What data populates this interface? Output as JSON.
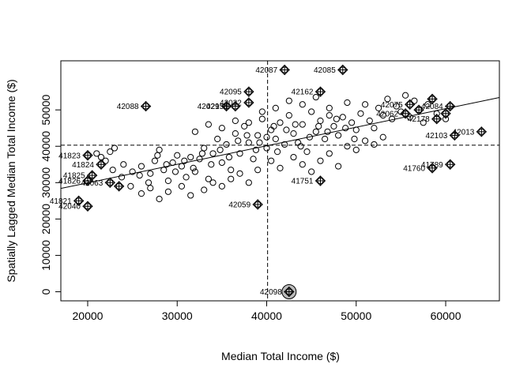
{
  "chart_data": {
    "type": "scatter",
    "title": "",
    "xlabel": "Median Total Income ($)",
    "ylabel": "Spatially Lagged Median Total Income ($)",
    "xlim": [
      17000,
      66000
    ],
    "ylim": [
      -2500,
      63500
    ],
    "xticks": [
      20000,
      30000,
      40000,
      50000,
      60000
    ],
    "yticks": [
      0,
      10000,
      20000,
      30000,
      40000,
      50000
    ],
    "mean_x": 40100,
    "mean_y": 40300,
    "regression_line": {
      "x": [
        17000,
        66000
      ],
      "y": [
        28400,
        53400
      ]
    },
    "series": [
      {
        "values": [
          [
            21000,
            38000
          ],
          [
            21500,
            37000
          ],
          [
            22000,
            36000
          ],
          [
            22500,
            38500
          ],
          [
            23000,
            39500
          ],
          [
            24000,
            35000
          ],
          [
            25000,
            33000
          ],
          [
            26000,
            34500
          ],
          [
            27000,
            32500
          ],
          [
            27500,
            36000
          ],
          [
            28000,
            39000
          ],
          [
            28500,
            33500
          ],
          [
            29000,
            30500
          ],
          [
            29500,
            35500
          ],
          [
            30000,
            37500
          ],
          [
            30500,
            34500
          ],
          [
            31000,
            31500
          ],
          [
            31500,
            37000
          ],
          [
            32000,
            33000
          ],
          [
            32500,
            36500
          ],
          [
            33000,
            39500
          ],
          [
            33500,
            31000
          ],
          [
            34000,
            38000
          ],
          [
            34500,
            42000
          ],
          [
            35000,
            35500
          ],
          [
            35500,
            40500
          ],
          [
            36000,
            33500
          ],
          [
            36500,
            43500
          ],
          [
            37000,
            38000
          ],
          [
            37500,
            45500
          ],
          [
            38000,
            41000
          ],
          [
            38500,
            36500
          ],
          [
            39000,
            43000
          ],
          [
            39500,
            47500
          ],
          [
            40000,
            39500
          ],
          [
            40500,
            44500
          ],
          [
            41000,
            42000
          ],
          [
            41500,
            46500
          ],
          [
            42000,
            40500
          ],
          [
            42500,
            48500
          ],
          [
            43000,
            43500
          ],
          [
            43500,
            41000
          ],
          [
            44000,
            46000
          ],
          [
            44500,
            38500
          ],
          [
            45000,
            49500
          ],
          [
            45500,
            44000
          ],
          [
            46000,
            47000
          ],
          [
            46500,
            42000
          ],
          [
            47000,
            50500
          ],
          [
            47500,
            45500
          ],
          [
            48000,
            43000
          ],
          [
            48500,
            48000
          ],
          [
            49000,
            52000
          ],
          [
            49500,
            46500
          ],
          [
            50000,
            44500
          ],
          [
            50500,
            49000
          ],
          [
            51000,
            51500
          ],
          [
            51500,
            47000
          ],
          [
            52000,
            45000
          ],
          [
            52500,
            50500
          ],
          [
            53000,
            48500
          ],
          [
            53500,
            53000
          ],
          [
            54000,
            47500
          ],
          [
            54500,
            51000
          ],
          [
            55000,
            49500
          ],
          [
            55500,
            54000
          ],
          [
            56000,
            48000
          ],
          [
            56500,
            52500
          ],
          [
            57000,
            50000
          ],
          [
            57500,
            46500
          ],
          [
            58000,
            51500
          ],
          [
            59000,
            49000
          ],
          [
            60000,
            47500
          ],
          [
            26000,
            27000
          ],
          [
            27000,
            28500
          ],
          [
            28000,
            25500
          ],
          [
            29000,
            27500
          ],
          [
            30500,
            29000
          ],
          [
            31500,
            26500
          ],
          [
            33000,
            28000
          ],
          [
            34000,
            30000
          ],
          [
            35000,
            29000
          ],
          [
            36000,
            31000
          ],
          [
            37000,
            32500
          ],
          [
            38000,
            30000
          ],
          [
            39000,
            33500
          ],
          [
            40500,
            36000
          ],
          [
            41500,
            34000
          ],
          [
            43000,
            37000
          ],
          [
            44000,
            35000
          ],
          [
            45000,
            33000
          ],
          [
            46000,
            36000
          ],
          [
            47000,
            38000
          ],
          [
            48000,
            34500
          ],
          [
            49000,
            40000
          ],
          [
            50000,
            39000
          ],
          [
            51000,
            41500
          ],
          [
            52000,
            40500
          ],
          [
            53000,
            42500
          ],
          [
            32000,
            44000
          ],
          [
            33500,
            46000
          ],
          [
            35000,
            45000
          ],
          [
            36500,
            47000
          ],
          [
            38000,
            46500
          ],
          [
            39500,
            49500
          ],
          [
            41000,
            50500
          ],
          [
            42500,
            52500
          ],
          [
            44000,
            51500
          ],
          [
            45500,
            53500
          ],
          [
            47000,
            48500
          ],
          [
            40000,
            42500
          ],
          [
            40800,
            45500
          ],
          [
            41200,
            38500
          ],
          [
            42200,
            44500
          ],
          [
            43200,
            46000
          ],
          [
            43800,
            40000
          ],
          [
            44800,
            42500
          ],
          [
            45800,
            45500
          ],
          [
            46800,
            44000
          ],
          [
            47800,
            47500
          ],
          [
            48800,
            45000
          ],
          [
            49800,
            42000
          ],
          [
            36800,
            41500
          ],
          [
            37800,
            43000
          ],
          [
            38800,
            39000
          ],
          [
            39200,
            41000
          ],
          [
            35800,
            37000
          ],
          [
            34800,
            39000
          ],
          [
            33800,
            35000
          ],
          [
            32800,
            38000
          ],
          [
            31800,
            34000
          ],
          [
            30800,
            36000
          ],
          [
            29800,
            33000
          ],
          [
            28800,
            35000
          ],
          [
            27800,
            37500
          ],
          [
            26800,
            30000
          ],
          [
            25800,
            32000
          ],
          [
            24800,
            29000
          ],
          [
            23800,
            31500
          ],
          [
            22800,
            33500
          ]
        ]
      },
      {
        "values": [
          [
            26500,
            51000
          ],
          [
            42000,
            61000
          ],
          [
            48500,
            61000
          ],
          [
            38000,
            55000
          ],
          [
            46000,
            55000
          ],
          [
            36500,
            51000
          ],
          [
            35500,
            51000
          ],
          [
            38000,
            52000
          ],
          [
            20000,
            37500
          ],
          [
            21500,
            35000
          ],
          [
            20500,
            32000
          ],
          [
            20000,
            30500
          ],
          [
            22500,
            30000
          ],
          [
            23500,
            29000
          ],
          [
            19000,
            25000
          ],
          [
            20000,
            23500
          ],
          [
            39000,
            24000
          ],
          [
            46000,
            30500
          ],
          [
            58500,
            34000
          ],
          [
            60500,
            35000
          ],
          [
            64000,
            44000
          ],
          [
            61000,
            43000
          ],
          [
            60500,
            51000
          ],
          [
            59000,
            47500
          ],
          [
            58500,
            53000
          ],
          [
            57000,
            50000
          ],
          [
            56000,
            51500
          ],
          [
            55500,
            49000
          ],
          [
            60000,
            49000
          ],
          [
            42500,
            0
          ]
        ],
        "labels": [
          "42088",
          "42087",
          "42085",
          "42095",
          "42162",
          "42156",
          "42029",
          "42032",
          "41823",
          "41824",
          "41825",
          "41826",
          "42063",
          "",
          "41821",
          "42040",
          "42059",
          "41751",
          "41760",
          "41789",
          "42013",
          "42103",
          "42084",
          "42178",
          "",
          "",
          "42075",
          "42062",
          "",
          "42098"
        ]
      }
    ]
  }
}
